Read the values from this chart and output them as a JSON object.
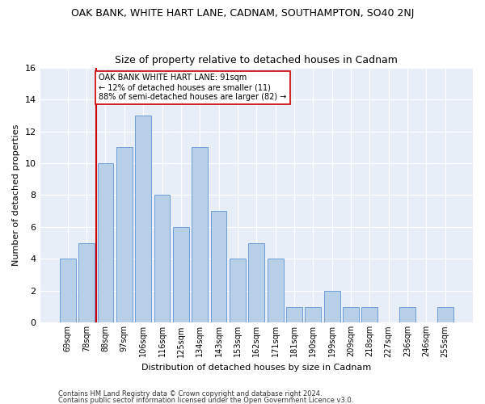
{
  "title": "OAK BANK, WHITE HART LANE, CADNAM, SOUTHAMPTON, SO40 2NJ",
  "subtitle": "Size of property relative to detached houses in Cadnam",
  "xlabel": "Distribution of detached houses by size in Cadnam",
  "ylabel": "Number of detached properties",
  "categories": [
    "69sqm",
    "78sqm",
    "88sqm",
    "97sqm",
    "106sqm",
    "116sqm",
    "125sqm",
    "134sqm",
    "143sqm",
    "153sqm",
    "162sqm",
    "171sqm",
    "181sqm",
    "190sqm",
    "199sqm",
    "209sqm",
    "218sqm",
    "227sqm",
    "236sqm",
    "246sqm",
    "255sqm"
  ],
  "values": [
    4,
    5,
    10,
    11,
    13,
    8,
    6,
    11,
    7,
    4,
    5,
    4,
    1,
    1,
    2,
    1,
    1,
    0,
    1,
    0,
    1
  ],
  "bar_color": "#b8cfe8",
  "bar_edge_color": "#6a9fd8",
  "vline_x_index": 2,
  "vline_color": "#cc0000",
  "annotation_text": "OAK BANK WHITE HART LANE: 91sqm\n← 12% of detached houses are smaller (11)\n88% of semi-detached houses are larger (82) →",
  "annotation_box_color": "#ffffff",
  "annotation_box_edge": "#cc0000",
  "ylim": [
    0,
    16
  ],
  "yticks": [
    0,
    2,
    4,
    6,
    8,
    10,
    12,
    14,
    16
  ],
  "footer1": "Contains HM Land Registry data © Crown copyright and database right 2024.",
  "footer2": "Contains public sector information licensed under the Open Government Licence v3.0.",
  "background_color": "#e8eef8",
  "title_fontsize": 9,
  "subtitle_fontsize": 9,
  "axis_label_fontsize": 8,
  "tick_fontsize": 7,
  "annotation_fontsize": 7,
  "footer_fontsize": 6
}
